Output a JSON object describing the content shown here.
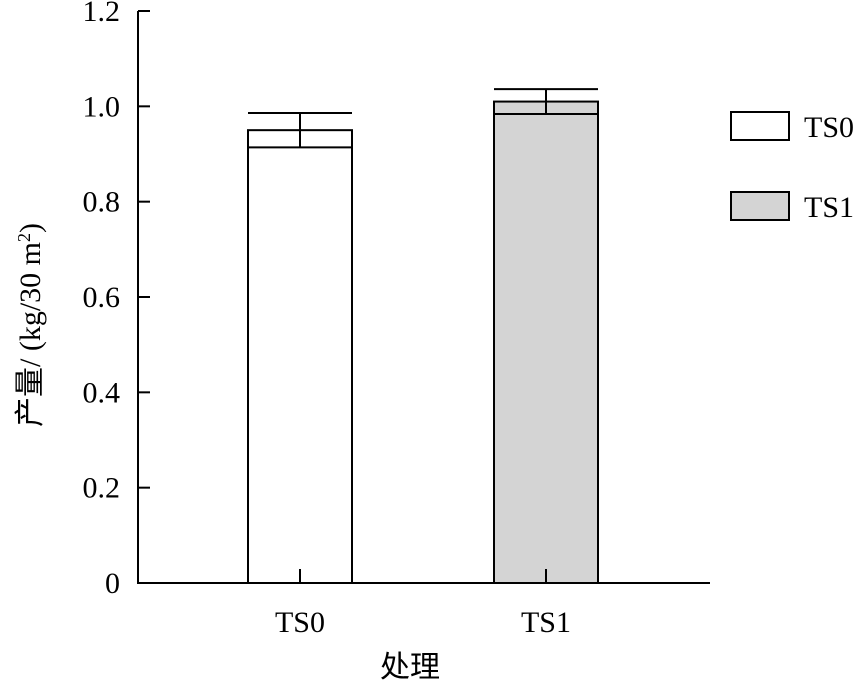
{
  "chart_data": {
    "type": "bar",
    "title": "",
    "xlabel": "处理",
    "ylabel_prefix": "产量/ (kg/30 m",
    "ylabel_sup": "2",
    "ylabel_suffix": ")",
    "categories": [
      "TS0",
      "TS1"
    ],
    "series": [
      {
        "name": "TS0",
        "values": [
          0.95,
          null
        ],
        "error": [
          0.036,
          null
        ],
        "color": "#ffffff"
      },
      {
        "name": "TS1",
        "values": [
          null,
          1.01
        ],
        "error": [
          null,
          0.026
        ],
        "color": "#d4d4d4"
      }
    ],
    "ylim": [
      0,
      1.2
    ],
    "yticks": [
      0,
      0.2,
      0.4,
      0.6,
      0.8,
      1.0,
      1.2
    ],
    "ytick_labels": [
      "0",
      "0.2",
      "0.4",
      "0.6",
      "0.8",
      "1.0",
      "1.2"
    ],
    "grid": false,
    "legend_position": "right"
  }
}
